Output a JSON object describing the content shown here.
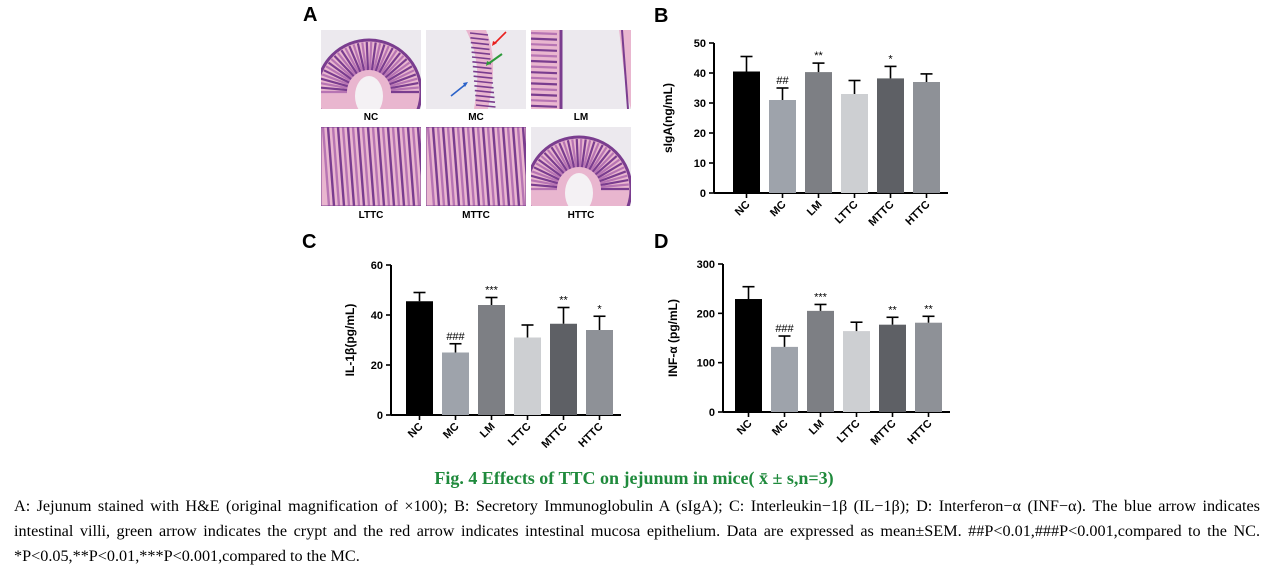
{
  "panel_a": {
    "letter": "A",
    "images": [
      {
        "label": "NC",
        "tissue": "villi-circle"
      },
      {
        "label": "MC",
        "tissue": "thin-strip"
      },
      {
        "label": "LM",
        "tissue": "edge-right"
      },
      {
        "label": "LTTC",
        "tissue": "dense-villi"
      },
      {
        "label": "MTTC",
        "tissue": "dense-villi"
      },
      {
        "label": "HTTC",
        "tissue": "villi-circle"
      }
    ],
    "arrow_colors": {
      "red": "#e8201e",
      "green": "#2d9a3a",
      "blue": "#2a62c9"
    }
  },
  "chart_data": [
    {
      "panel": "B",
      "type": "bar",
      "ylabel": "sIgA(ng/mL)",
      "ylim": [
        0,
        50
      ],
      "yticks": [
        0,
        10,
        20,
        30,
        40,
        50
      ],
      "categories": [
        "NC",
        "MC",
        "LM",
        "LTTC",
        "MTTC",
        "HTTC"
      ],
      "values": [
        40.5,
        31,
        40.3,
        33,
        38.2,
        37
      ],
      "errors": [
        5,
        4,
        3,
        4.5,
        4,
        2.7
      ],
      "annotations": [
        "",
        "##",
        "**",
        "",
        "*",
        ""
      ],
      "colors": [
        "#000000",
        "#9ea3ab",
        "#7d7f84",
        "#cdcfd2",
        "#5e6065",
        "#8e9197"
      ]
    },
    {
      "panel": "C",
      "type": "bar",
      "ylabel": "IL-1β(pg/mL)",
      "ylim": [
        0,
        60
      ],
      "yticks": [
        0,
        20,
        40,
        60
      ],
      "categories": [
        "NC",
        "MC",
        "LM",
        "LTTC",
        "MTTC",
        "HTTC"
      ],
      "values": [
        45.5,
        25,
        44,
        31,
        36.5,
        34
      ],
      "errors": [
        3.5,
        3.5,
        3,
        5,
        6.5,
        5.5
      ],
      "annotations": [
        "",
        "###",
        "***",
        "",
        "**",
        "*"
      ],
      "colors": [
        "#000000",
        "#9ea3ab",
        "#7d7f84",
        "#cdcfd2",
        "#5e6065",
        "#8e9197"
      ]
    },
    {
      "panel": "D",
      "type": "bar",
      "ylabel": "INF-α (pg/mL)",
      "ylim": [
        0,
        300
      ],
      "yticks": [
        0,
        100,
        200,
        300
      ],
      "categories": [
        "NC",
        "MC",
        "LM",
        "LTTC",
        "MTTC",
        "HTTC"
      ],
      "values": [
        229,
        132,
        205,
        164,
        177,
        181
      ],
      "errors": [
        25,
        22,
        13,
        18,
        15,
        13
      ],
      "annotations": [
        "",
        "###",
        "***",
        "",
        "**",
        "**"
      ],
      "colors": [
        "#000000",
        "#9ea3ab",
        "#7d7f84",
        "#cdcfd2",
        "#5e6065",
        "#8e9197"
      ]
    }
  ],
  "caption": {
    "title": "Fig. 4 Effects of TTC on jejunum in mice( x̄ ± s,n=3)",
    "body": "A: Jejunum stained with H&E (original magnification of ×100); B: Secretory Immunoglobulin A (sIgA); C: Interleukin−1β (IL−1β); D:  Interferon−α (INF−α). The blue arrow indicates intestinal villi, green arrow indicates the crypt and the red arrow indicates intestinal mucosa epithelium. Data are expressed as mean±SEM. ##P<0.01,###P<0.001,compared to the NC. *P<0.05,**P<0.01,***P<0.001,compared to the MC."
  }
}
